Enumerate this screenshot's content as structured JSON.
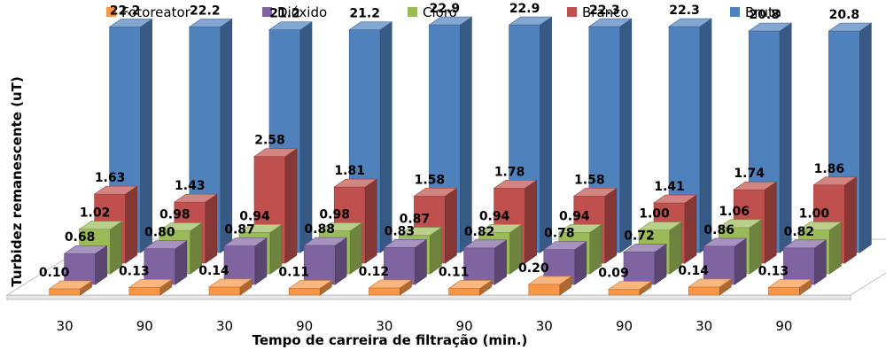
{
  "chart_data": {
    "type": "bar",
    "style": "3d-clustered-depth",
    "categories": [
      "30",
      "90",
      "30",
      "90",
      "30",
      "90",
      "30",
      "90",
      "30",
      "90"
    ],
    "xlabel": "Tempo de carreira de filtração (min.)",
    "ylabel": "Turbidez remanescente (uT)",
    "legend_position": "top",
    "series": [
      {
        "name": "Fotoreator",
        "color": "#F79646",
        "values": [
          0.1,
          0.13,
          0.14,
          0.11,
          0.12,
          0.11,
          0.2,
          0.09,
          0.14,
          0.13
        ]
      },
      {
        "name": "Dióxido",
        "color": "#8064A2",
        "values": [
          0.68,
          0.8,
          0.87,
          0.88,
          0.83,
          0.82,
          0.78,
          0.72,
          0.86,
          0.82
        ]
      },
      {
        "name": "Cloro",
        "color": "#9BBB59",
        "values": [
          1.02,
          0.98,
          0.94,
          0.98,
          0.87,
          0.94,
          0.94,
          1.0,
          1.06,
          1.0
        ]
      },
      {
        "name": "Branco",
        "color": "#C0504D",
        "values": [
          1.63,
          1.43,
          2.58,
          1.81,
          1.58,
          1.78,
          1.58,
          1.41,
          1.74,
          1.86
        ]
      },
      {
        "name": "Bruta",
        "color": "#4F81BD",
        "values": [
          22.2,
          22.2,
          21.2,
          21.2,
          22.9,
          22.9,
          22.3,
          22.3,
          20.8,
          20.8
        ]
      }
    ],
    "value_labels": {
      "Fotoreator": [
        "0.10",
        "0.13",
        "0.14",
        "0.11",
        "0.12",
        "0.11",
        "0.20",
        "0.09",
        "0.14",
        "0.13"
      ],
      "Dióxido": [
        "0.68",
        "0.80",
        "0.87",
        "0.88",
        "0.83",
        "0.82",
        "0.78",
        "0.72",
        "0.86",
        "0.82"
      ],
      "Cloro": [
        "1.02",
        "0.98",
        "0.94",
        "0.98",
        "0.87",
        "0.94",
        "0.94",
        "1.00",
        "1.06",
        "1.00"
      ],
      "Branco": [
        "1.63",
        "1.43",
        "2.58",
        "1.81",
        "1.58",
        "1.78",
        "1.58",
        "1.41",
        "1.74",
        "1.86"
      ],
      "Bruta": [
        "22.2",
        "22.2",
        "21.2",
        "21.2",
        "22.9",
        "22.9",
        "22.3",
        "22.3",
        "20.8",
        "20.8"
      ]
    }
  }
}
